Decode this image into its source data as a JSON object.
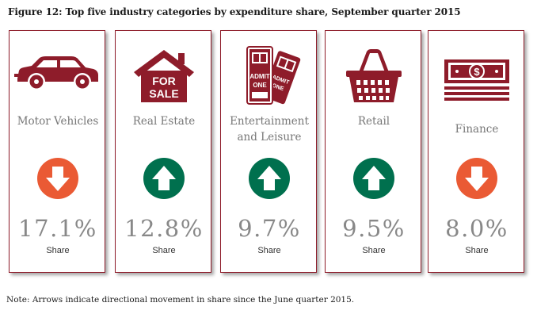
{
  "title": "Figure 12: Top five industry categories by expenditure share, September quarter 2015",
  "cards": [
    {
      "label": "Motor Vehicles",
      "value": "17.1%",
      "unit": "Share",
      "direction": "down",
      "icon": "car-icon"
    },
    {
      "label": "Real Estate",
      "value": "12.8%",
      "unit": "Share",
      "direction": "up",
      "icon": "for-sale-house-icon",
      "sign_text_1": "FOR",
      "sign_text_2": "SALE"
    },
    {
      "label_line1": "Entertainment",
      "label_line2": "and Leisure",
      "value": "9.7%",
      "unit": "Share",
      "direction": "up",
      "icon": "admit-one-tickets-icon",
      "ticket_text_1": "ADMIT",
      "ticket_text_2": "ONE"
    },
    {
      "label": "Retail",
      "value": "9.5%",
      "unit": "Share",
      "direction": "up",
      "icon": "shopping-basket-icon"
    },
    {
      "label": "Finance",
      "value": "8.0%",
      "unit": "Share",
      "direction": "down",
      "icon": "money-stack-icon"
    }
  ],
  "note": "Note: Arrows indicate directional movement in share since the June quarter 2015.",
  "colors": {
    "brand": "#8e1c2a",
    "up": "#00704e",
    "down": "#ea5a34",
    "text_muted": "#888888"
  }
}
